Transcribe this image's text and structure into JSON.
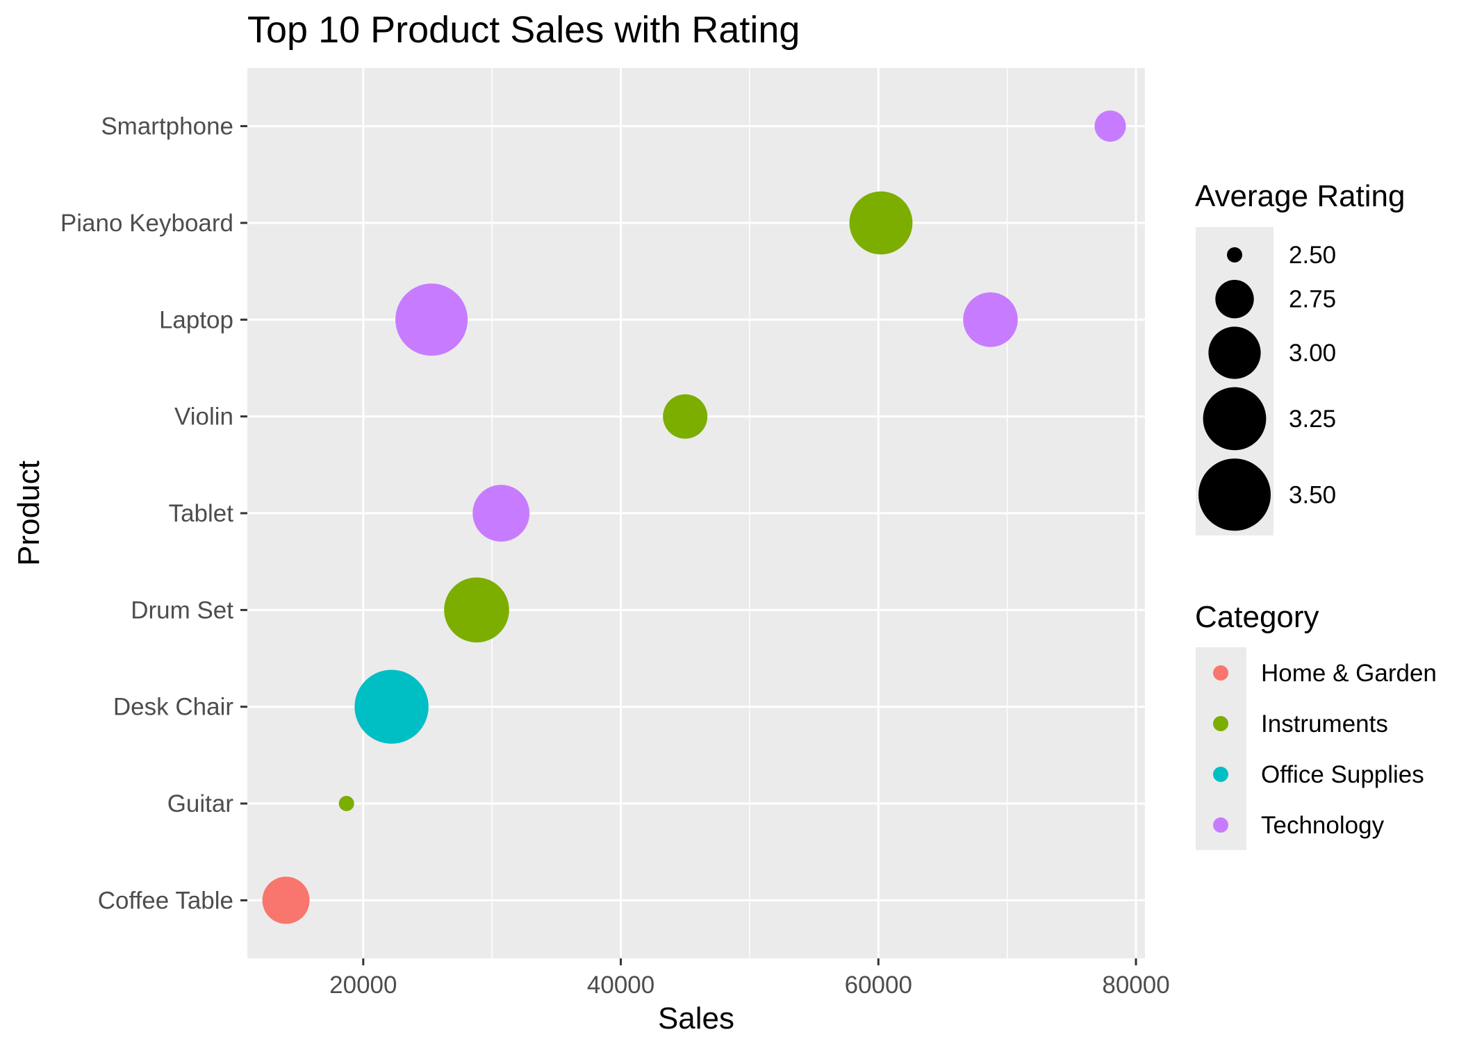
{
  "chart_data": {
    "type": "scatter",
    "title": "Top 10 Product Sales with Rating",
    "xlabel": "Sales",
    "ylabel": "Product",
    "xlim": [
      11000,
      80700
    ],
    "x_ticks": [
      20000,
      40000,
      60000,
      80000
    ],
    "x_tick_labels": [
      "20000",
      "40000",
      "60000",
      "80000"
    ],
    "categories": [
      "Coffee Table",
      "Guitar",
      "Desk Chair",
      "Drum Set",
      "Tablet",
      "Violin",
      "Laptop",
      "Piano Keyboard",
      "Smartphone"
    ],
    "points": [
      {
        "product": "Smartphone",
        "sales": 78000,
        "rating": 2.65,
        "category": "Technology"
      },
      {
        "product": "Piano Keyboard",
        "sales": 60200,
        "rating": 3.25,
        "category": "Instruments"
      },
      {
        "product": "Laptop",
        "sales": 25300,
        "rating": 3.5,
        "category": "Technology"
      },
      {
        "product": "Laptop",
        "sales": 68700,
        "rating": 3.05,
        "category": "Technology"
      },
      {
        "product": "Violin",
        "sales": 45000,
        "rating": 2.85,
        "category": "Instruments"
      },
      {
        "product": "Tablet",
        "sales": 30700,
        "rating": 3.1,
        "category": "Technology"
      },
      {
        "product": "Drum Set",
        "sales": 28800,
        "rating": 3.3,
        "category": "Instruments"
      },
      {
        "product": "Desk Chair",
        "sales": 22200,
        "rating": 3.55,
        "category": "Office Supplies"
      },
      {
        "product": "Guitar",
        "sales": 18700,
        "rating": 2.5,
        "category": "Instruments"
      },
      {
        "product": "Coffee Table",
        "sales": 14000,
        "rating": 2.9,
        "category": "Home & Garden"
      }
    ],
    "size_legend": {
      "title": "Average Rating",
      "values": [
        2.5,
        2.75,
        3.0,
        3.25,
        3.5
      ],
      "labels": [
        "2.50",
        "2.75",
        "3.00",
        "3.25",
        "3.50"
      ]
    },
    "color_legend": {
      "title": "Category",
      "items": [
        {
          "label": "Home & Garden",
          "color": "#F8766D"
        },
        {
          "label": "Instruments",
          "color": "#7CAE00"
        },
        {
          "label": "Office Supplies",
          "color": "#00BFC4"
        },
        {
          "label": "Technology",
          "color": "#C77CFF"
        }
      ]
    },
    "colors": {
      "panel_background": "#EBEBEB",
      "grid": "#FFFFFF",
      "tick_text": "#4D4D4D",
      "tick_mark": "#333333"
    }
  }
}
